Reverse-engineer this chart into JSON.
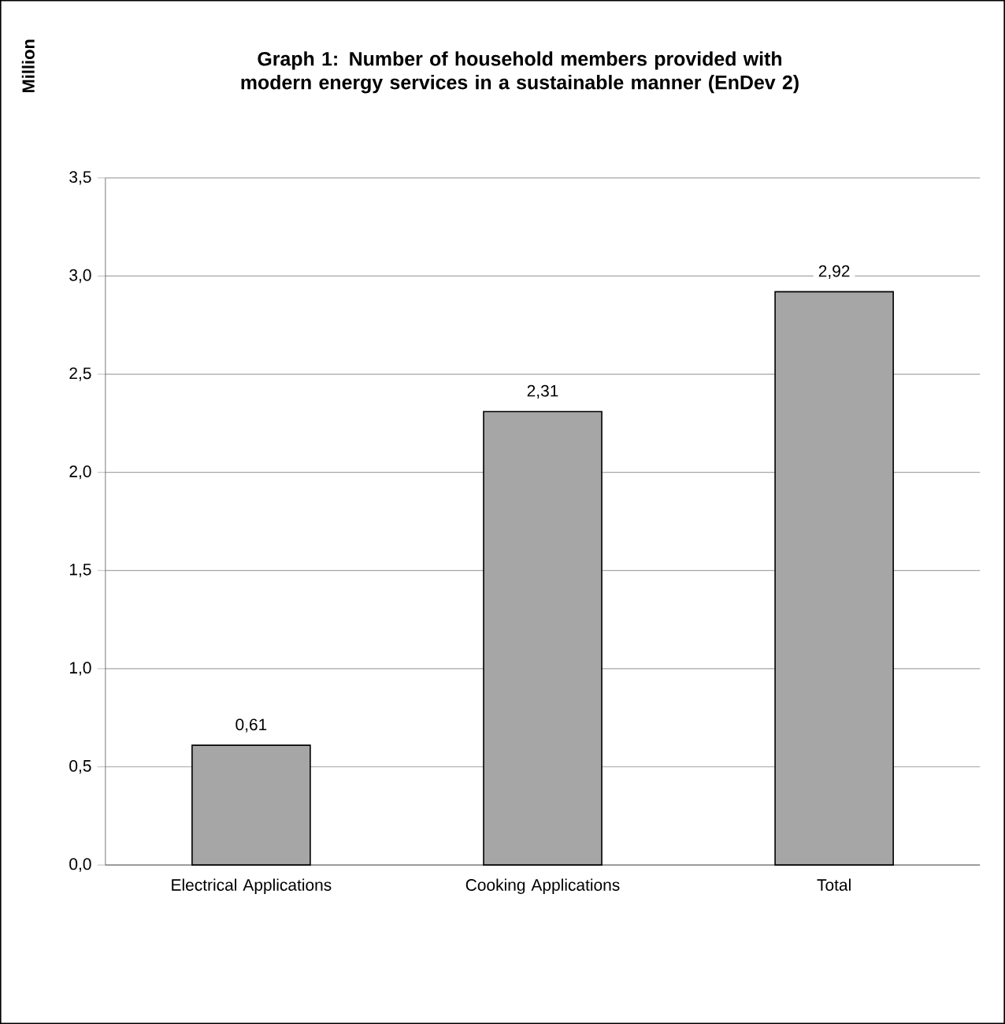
{
  "chart_data": {
    "type": "bar",
    "title": "Graph 1: Number of household members provided  with modern energy services in a sustainable manner (EnDev 2)",
    "ylabel": "Million",
    "categories": [
      "Electrical Applications",
      "Cooking Applications",
      "Total"
    ],
    "values": [
      0.61,
      2.31,
      2.92
    ],
    "color": "#a6a6a6",
    "value_labels": [
      "0,61",
      "2,31",
      "2,92"
    ],
    "ylim": [
      0,
      3.5
    ],
    "yticks": [
      {
        "value": 0,
        "label": "0,0"
      },
      {
        "value": 0.5,
        "label": "0,5"
      },
      {
        "value": 1,
        "label": "1,0"
      },
      {
        "value": 1.5,
        "label": "1,5"
      },
      {
        "value": 2,
        "label": "2,0"
      },
      {
        "value": 2.5,
        "label": "2,5"
      },
      {
        "value": 3,
        "label": "3,0"
      },
      {
        "value": 3.5,
        "label": "3,5"
      }
    ],
    "grid": "y"
  }
}
